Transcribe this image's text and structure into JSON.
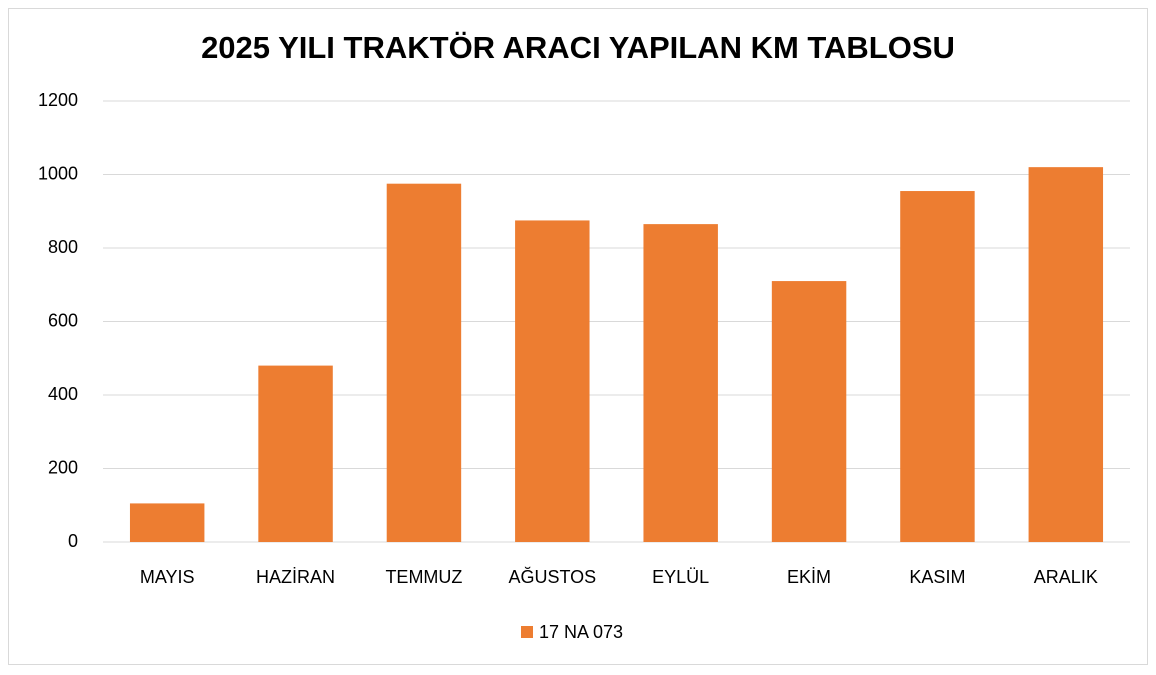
{
  "chart_data": {
    "type": "bar",
    "title": "2025 YILI TRAKTÖR ARACI YAPILAN KM TABLOSU",
    "categories": [
      "MAYIS",
      "HAZİRAN",
      "TEMMUZ",
      "AĞUSTOS",
      "EYLÜL",
      "EKİM",
      "KASIM",
      "ARALIK"
    ],
    "series": [
      {
        "name": "17 NA 073",
        "color": "#ed7d31",
        "values": [
          105,
          480,
          975,
          875,
          865,
          710,
          955,
          1020
        ]
      }
    ],
    "ylim": [
      0,
      1200
    ],
    "yticks": [
      0,
      200,
      400,
      600,
      800,
      1000,
      1200
    ],
    "grid": true,
    "legend": "bottom"
  }
}
